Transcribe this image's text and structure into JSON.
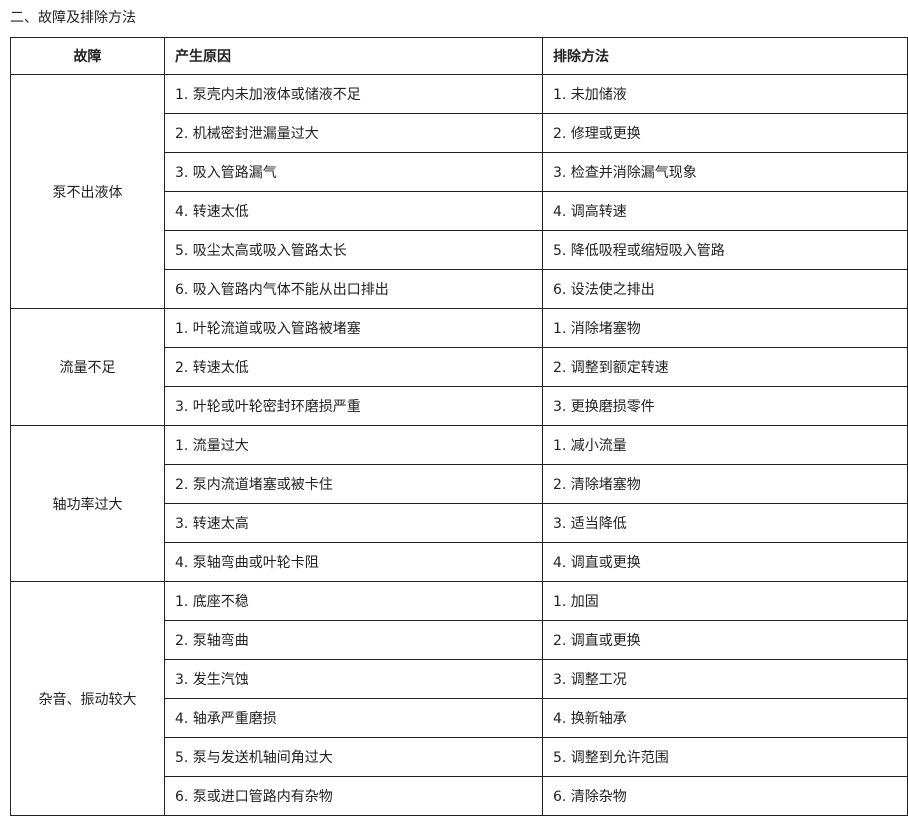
{
  "title": "二、故障及排除方法",
  "headers": [
    "故障",
    "产生原因",
    "排除方法"
  ],
  "groups": [
    {
      "fault": "泵不出液体",
      "rows": [
        [
          "1. 泵壳内未加液体或储液不足",
          "1. 未加储液"
        ],
        [
          "2. 机械密封泄漏量过大",
          "2. 修理或更换"
        ],
        [
          "3. 吸入管路漏气",
          "3. 检查并消除漏气现象"
        ],
        [
          "4. 转速太低",
          "4. 调高转速"
        ],
        [
          "5. 吸尘太高或吸入管路太长",
          "5. 降低吸程或缩短吸入管路"
        ],
        [
          "6. 吸入管路内气体不能从出口排出",
          "6. 设法使之排出"
        ]
      ]
    },
    {
      "fault": "流量不足",
      "rows": [
        [
          "1. 叶轮流道或吸入管路被堵塞",
          "1. 消除堵塞物"
        ],
        [
          "2. 转速太低",
          "2. 调整到额定转速"
        ],
        [
          "3. 叶轮或叶轮密封环磨损严重",
          "3. 更换磨损零件"
        ]
      ]
    },
    {
      "fault": "轴功率过大",
      "rows": [
        [
          "1. 流量过大",
          "1. 减小流量"
        ],
        [
          "2. 泵内流道堵塞或被卡住",
          "2. 清除堵塞物"
        ],
        [
          "3. 转速太高",
          "3. 适当降低"
        ],
        [
          "4. 泵轴弯曲或叶轮卡阻",
          "4. 调直或更换"
        ]
      ]
    },
    {
      "fault": "杂音、振动较大",
      "rows": [
        [
          "1. 底座不稳",
          "1. 加固"
        ],
        [
          "2. 泵轴弯曲",
          "2. 调直或更换"
        ],
        [
          "3. 发生汽蚀",
          "3. 调整工况"
        ],
        [
          "4. 轴承严重磨损",
          "4. 换新轴承"
        ],
        [
          "5. 泵与发送机轴间角过大",
          "5. 调整到允许范围"
        ],
        [
          "6. 泵或进口管路内有杂物",
          "6. 清除杂物"
        ]
      ]
    }
  ]
}
